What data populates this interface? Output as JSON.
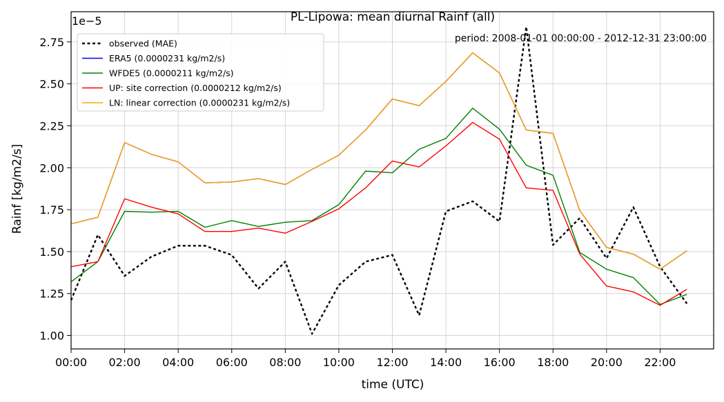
{
  "chart_data": {
    "type": "line",
    "title": "PL-Lipowa: mean diurnal Rainf (all)",
    "annotation": "period: 2008-01-01 00:00:00 - 2012-12-31 23:00:00",
    "xlabel": "time (UTC)",
    "ylabel": "Rainf [kg/m2/s]",
    "y_scale_label": "1e−5",
    "xlim": [
      0,
      24
    ],
    "ylim": [
      0.92,
      2.93
    ],
    "grid": true,
    "legend_position": "upper-left",
    "x_ticks": [
      0,
      2,
      4,
      6,
      8,
      10,
      12,
      14,
      16,
      18,
      20,
      22
    ],
    "x_tick_labels": [
      "00:00",
      "02:00",
      "04:00",
      "06:00",
      "08:00",
      "10:00",
      "12:00",
      "14:00",
      "16:00",
      "18:00",
      "20:00",
      "22:00"
    ],
    "y_ticks": [
      1.0,
      1.25,
      1.5,
      1.75,
      2.0,
      2.25,
      2.5,
      2.75
    ],
    "y_tick_labels": [
      "1.00",
      "1.25",
      "1.50",
      "1.75",
      "2.00",
      "2.25",
      "2.50",
      "2.75"
    ],
    "x": [
      0,
      1,
      2,
      3,
      4,
      5,
      6,
      7,
      8,
      9,
      10,
      11,
      12,
      13,
      14,
      15,
      16,
      17,
      18,
      19,
      20,
      21,
      22,
      23
    ],
    "series": [
      {
        "name": "observed (MAE)",
        "color": "#000000",
        "dashed": true,
        "values": [
          1.21,
          1.6,
          1.355,
          1.47,
          1.535,
          1.535,
          1.48,
          1.28,
          1.44,
          1.01,
          1.3,
          1.44,
          1.48,
          1.12,
          1.74,
          1.8,
          1.68,
          2.84,
          1.54,
          1.7,
          1.46,
          1.765,
          1.41,
          1.19
        ]
      },
      {
        "name": "ERA5 (0.0000231 kg/m2/s)",
        "color": "#0000ff",
        "dashed": false,
        "values": [
          1.665,
          1.705,
          2.15,
          2.08,
          2.035,
          1.91,
          1.915,
          1.935,
          1.9,
          1.99,
          2.075,
          2.225,
          2.41,
          2.37,
          2.515,
          2.685,
          2.565,
          2.225,
          2.205,
          1.745,
          1.525,
          1.485,
          1.395,
          1.505
        ]
      },
      {
        "name": "WFDE5 (0.0000211 kg/m2/s)",
        "color": "#008000",
        "dashed": false,
        "values": [
          1.32,
          1.44,
          1.74,
          1.735,
          1.74,
          1.645,
          1.685,
          1.65,
          1.675,
          1.685,
          1.78,
          1.98,
          1.97,
          2.11,
          2.175,
          2.355,
          2.23,
          2.015,
          1.955,
          1.495,
          1.395,
          1.345,
          1.185,
          1.245
        ]
      },
      {
        "name": "UP: site correction (0.0000212 kg/m2/s)",
        "color": "#ff0000",
        "dashed": false,
        "values": [
          1.41,
          1.44,
          1.815,
          1.765,
          1.725,
          1.62,
          1.62,
          1.64,
          1.61,
          1.68,
          1.755,
          1.88,
          2.04,
          2.005,
          2.13,
          2.27,
          2.17,
          1.88,
          1.865,
          1.485,
          1.295,
          1.26,
          1.18,
          1.275
        ]
      },
      {
        "name": "LN: linear correction (0.0000231 kg/m2/s)",
        "color": "#ffa500",
        "dashed": false,
        "values": [
          1.665,
          1.705,
          2.15,
          2.08,
          2.035,
          1.91,
          1.915,
          1.935,
          1.9,
          1.99,
          2.075,
          2.225,
          2.41,
          2.37,
          2.515,
          2.685,
          2.565,
          2.225,
          2.205,
          1.745,
          1.525,
          1.485,
          1.395,
          1.505
        ]
      }
    ]
  }
}
